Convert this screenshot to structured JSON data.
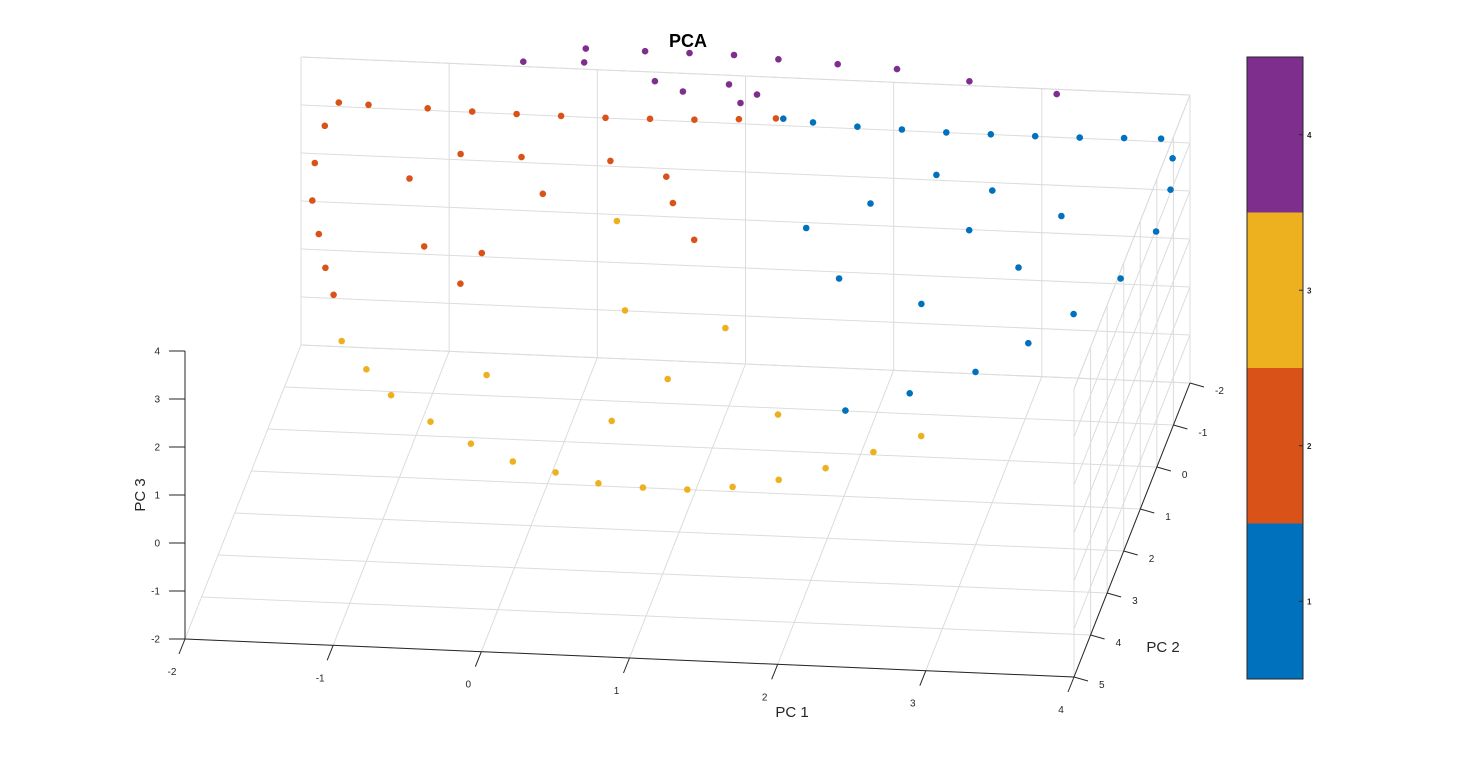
{
  "chart_data": {
    "type": "scatter",
    "title": "PCA",
    "xlabel": "PC 1",
    "ylabel": "PC 2",
    "zlabel": "PC 3",
    "xlim": [
      -2,
      4
    ],
    "ylim": [
      -2,
      5
    ],
    "zlim": [
      -2,
      4
    ],
    "xticks": [
      "-2",
      "-1",
      "0",
      "1",
      "2",
      "3",
      "4"
    ],
    "yticks": [
      "-2",
      "-1",
      "0",
      "1",
      "2",
      "3",
      "4",
      "5"
    ],
    "zticks": [
      "-2",
      "-1",
      "0",
      "1",
      "2",
      "3",
      "4"
    ],
    "grid": true,
    "colorbar": {
      "ticks": [
        "1",
        "2",
        "3",
        "4"
      ],
      "colors": [
        "#0072BD",
        "#D95319",
        "#EDB120",
        "#7E2F8E"
      ]
    },
    "series": [
      {
        "cluster": 1,
        "color": "#0072BD",
        "points": [
          [
            1.3,
            -1.6,
            3.5
          ],
          [
            1.5,
            -1.6,
            3.45
          ],
          [
            1.8,
            -1.6,
            3.4
          ],
          [
            2.1,
            -1.6,
            3.38
          ],
          [
            2.4,
            -1.6,
            3.36
          ],
          [
            2.7,
            -1.6,
            3.36
          ],
          [
            3.0,
            -1.6,
            3.36
          ],
          [
            3.3,
            -1.6,
            3.37
          ],
          [
            3.6,
            -1.6,
            3.4
          ],
          [
            3.85,
            -1.6,
            3.42
          ],
          [
            3.95,
            -1.4,
            3.2
          ],
          [
            3.98,
            -1.0,
            2.9
          ],
          [
            3.95,
            -0.4,
            2.55
          ],
          [
            3.8,
            0.4,
            2.25
          ],
          [
            3.55,
            1.0,
            2.0
          ],
          [
            3.3,
            1.5,
            1.8
          ],
          [
            3.0,
            2.0,
            1.6
          ],
          [
            2.6,
            2.4,
            1.45
          ],
          [
            2.2,
            2.7,
            1.3
          ],
          [
            2.4,
            -1.0,
            3.0
          ],
          [
            2.0,
            -0.6,
            2.7
          ],
          [
            1.6,
            -0.3,
            2.4
          ],
          [
            2.8,
            -0.8,
            2.9
          ],
          [
            3.3,
            -0.5,
            2.7
          ],
          [
            1.9,
            0.4,
            2.0
          ],
          [
            2.5,
            0.8,
            1.9
          ],
          [
            3.1,
            0.3,
            2.3
          ],
          [
            2.7,
            -0.3,
            2.5
          ]
        ]
      },
      {
        "cluster": 2,
        "color": "#D95319",
        "points": [
          [
            1.25,
            -1.6,
            3.5
          ],
          [
            1.0,
            -1.6,
            3.45
          ],
          [
            0.7,
            -1.6,
            3.4
          ],
          [
            0.4,
            -1.6,
            3.38
          ],
          [
            0.1,
            -1.6,
            3.36
          ],
          [
            -0.2,
            -1.6,
            3.36
          ],
          [
            -0.5,
            -1.6,
            3.36
          ],
          [
            -0.8,
            -1.6,
            3.37
          ],
          [
            -1.1,
            -1.6,
            3.4
          ],
          [
            -1.5,
            -1.6,
            3.42
          ],
          [
            -1.7,
            -1.6,
            3.44
          ],
          [
            -1.75,
            -1.2,
            3.3
          ],
          [
            -1.75,
            -0.6,
            3.05
          ],
          [
            -1.7,
            0.0,
            2.8
          ],
          [
            -1.6,
            0.5,
            2.55
          ],
          [
            -1.5,
            1.0,
            2.3
          ],
          [
            -1.4,
            1.4,
            2.1
          ],
          [
            -1.1,
            -0.5,
            2.9
          ],
          [
            -0.8,
            -0.9,
            3.1
          ],
          [
            -0.4,
            -1.0,
            3.0
          ],
          [
            0.2,
            -1.0,
            3.0
          ],
          [
            0.6,
            -0.8,
            2.9
          ],
          [
            -0.9,
            0.4,
            2.3
          ],
          [
            -0.6,
            0.9,
            2.0
          ],
          [
            -0.5,
            0.5,
            2.3
          ],
          [
            0.9,
            0.2,
            2.5
          ],
          [
            0.7,
            -0.3,
            2.8
          ],
          [
            -0.2,
            -0.5,
            2.7
          ]
        ]
      },
      {
        "cluster": 3,
        "color": "#EDB120",
        "points": [
          [
            -1.3,
            1.8,
            1.5
          ],
          [
            -1.1,
            2.1,
            1.2
          ],
          [
            -0.9,
            2.4,
            0.95
          ],
          [
            -0.6,
            2.7,
            0.7
          ],
          [
            -0.3,
            2.95,
            0.5
          ],
          [
            0.0,
            3.1,
            0.3
          ],
          [
            0.3,
            3.2,
            0.2
          ],
          [
            0.6,
            3.3,
            0.1
          ],
          [
            0.9,
            3.3,
            0.05
          ],
          [
            1.2,
            3.3,
            0.05
          ],
          [
            1.5,
            3.25,
            0.1
          ],
          [
            1.8,
            3.15,
            0.2
          ],
          [
            2.1,
            3.0,
            0.35
          ],
          [
            2.4,
            2.8,
            0.55
          ],
          [
            2.7,
            2.6,
            0.75
          ],
          [
            0.3,
            -0.5,
            2.2
          ],
          [
            0.5,
            0.8,
            1.5
          ],
          [
            1.2,
            1.0,
            1.4
          ],
          [
            0.9,
            1.8,
            1.0
          ],
          [
            -0.3,
            2.0,
            1.1
          ],
          [
            0.6,
            2.5,
            0.7
          ],
          [
            1.7,
            2.3,
            0.8
          ]
        ]
      },
      {
        "cluster": 4,
        "color": "#7E2F8E",
        "points": [
          [
            -0.5,
            -2.0,
            4.1
          ],
          [
            -0.1,
            -2.2,
            4.25
          ],
          [
            0.3,
            -2.2,
            4.25
          ],
          [
            0.6,
            -2.2,
            4.25
          ],
          [
            0.9,
            -2.2,
            4.25
          ],
          [
            1.2,
            -2.2,
            4.2
          ],
          [
            1.6,
            -2.2,
            4.15
          ],
          [
            2.0,
            -2.2,
            4.1
          ],
          [
            2.5,
            -2.1,
            4.0
          ],
          [
            3.1,
            -2.0,
            3.9
          ],
          [
            0.9,
            -1.9,
            3.9
          ],
          [
            1.1,
            -1.8,
            3.8
          ],
          [
            0.4,
            -1.9,
            3.9
          ],
          [
            -0.1,
            -2.1,
            4.05
          ],
          [
            1.0,
            -1.7,
            3.7
          ],
          [
            0.6,
            -1.8,
            3.8
          ]
        ]
      }
    ]
  }
}
